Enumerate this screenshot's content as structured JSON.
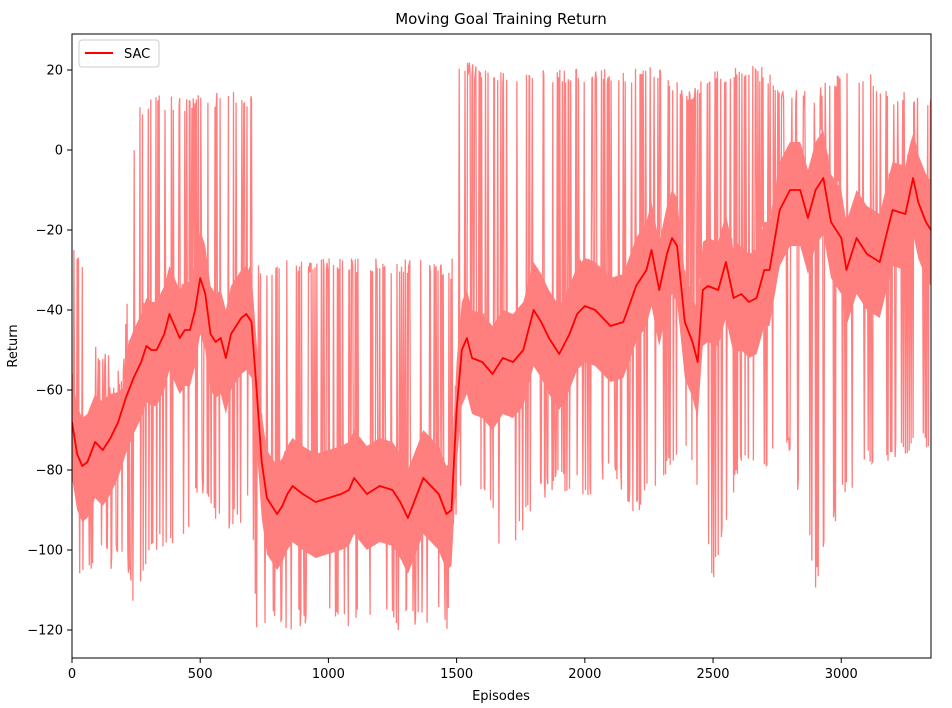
{
  "chart_data": {
    "type": "line",
    "title": "Moving Goal Training Return",
    "xlabel": "Episodes",
    "ylabel": "Return",
    "xlim": [
      0,
      3350
    ],
    "ylim": [
      -127,
      29
    ],
    "xticks": [
      0,
      500,
      1000,
      1500,
      2000,
      2500,
      3000
    ],
    "yticks": [
      -120,
      -100,
      -80,
      -60,
      -40,
      -20,
      0,
      20
    ],
    "grid": false,
    "legend": {
      "placement": "top-left",
      "entries": [
        "SAC"
      ]
    },
    "colors": {
      "smoothed": "#ff0000",
      "raw": "#ff7f7f"
    },
    "series": [
      {
        "name": "SAC",
        "role": "smoothed",
        "x": [
          0,
          20,
          40,
          60,
          90,
          120,
          150,
          180,
          210,
          240,
          270,
          290,
          310,
          330,
          360,
          380,
          400,
          420,
          440,
          460,
          480,
          500,
          520,
          540,
          560,
          580,
          600,
          620,
          640,
          660,
          680,
          700,
          720,
          740,
          760,
          780,
          800,
          820,
          840,
          860,
          900,
          950,
          1000,
          1050,
          1080,
          1100,
          1150,
          1200,
          1250,
          1280,
          1310,
          1340,
          1370,
          1400,
          1430,
          1460,
          1480,
          1500,
          1520,
          1540,
          1560,
          1600,
          1640,
          1680,
          1720,
          1760,
          1800,
          1830,
          1860,
          1900,
          1940,
          1970,
          2000,
          2040,
          2070,
          2100,
          2150,
          2200,
          2240,
          2260,
          2290,
          2320,
          2340,
          2360,
          2390,
          2420,
          2440,
          2460,
          2480,
          2520,
          2550,
          2580,
          2610,
          2640,
          2670,
          2700,
          2720,
          2760,
          2800,
          2840,
          2870,
          2900,
          2930,
          2960,
          3000,
          3020,
          3060,
          3100,
          3150,
          3200,
          3250,
          3280,
          3300,
          3330,
          3350
        ],
        "y": [
          -68,
          -76,
          -79,
          -78,
          -73,
          -75,
          -72,
          -68,
          -62,
          -57,
          -53,
          -49,
          -50,
          -50,
          -46,
          -41,
          -44,
          -47,
          -45,
          -45,
          -40,
          -32,
          -36,
          -46,
          -48,
          -47,
          -52,
          -46,
          -44,
          -42,
          -41,
          -43,
          -60,
          -78,
          -87,
          -89,
          -91,
          -89,
          -86,
          -84,
          -86,
          -88,
          -87,
          -86,
          -85,
          -82,
          -86,
          -84,
          -85,
          -88,
          -92,
          -87,
          -82,
          -84,
          -86,
          -91,
          -90,
          -65,
          -50,
          -47,
          -52,
          -53,
          -56,
          -52,
          -53,
          -50,
          -40,
          -43,
          -47,
          -51,
          -46,
          -41,
          -39,
          -40,
          -42,
          -44,
          -43,
          -34,
          -30,
          -25,
          -35,
          -26,
          -22,
          -24,
          -43,
          -48,
          -53,
          -35,
          -34,
          -35,
          -28,
          -37,
          -36,
          -38,
          -37,
          -30,
          -30,
          -15,
          -10,
          -10,
          -17,
          -10,
          -7,
          -18,
          -22,
          -30,
          -22,
          -26,
          -28,
          -15,
          -16,
          -7,
          -13,
          -18,
          -20
        ]
      }
    ],
    "raw_band": {
      "x": [
        0,
        50,
        100,
        150,
        200,
        250,
        300,
        350,
        400,
        450,
        500,
        550,
        600,
        650,
        700,
        720,
        760,
        800,
        900,
        1000,
        1100,
        1200,
        1300,
        1400,
        1480,
        1500,
        1550,
        1600,
        1700,
        1800,
        1900,
        2000,
        2100,
        2200,
        2300,
        2400,
        2500,
        2600,
        2700,
        2800,
        2900,
        3000,
        3100,
        3200,
        3300,
        3350
      ],
      "upper": [
        -20,
        -30,
        -50,
        -50,
        -55,
        12,
        13,
        14,
        14,
        13,
        14,
        14,
        15,
        15,
        14,
        -27,
        -30,
        -27,
        -27,
        -27,
        -27,
        -27,
        -27,
        -27,
        -30,
        22,
        22,
        20,
        20,
        20,
        20,
        21,
        20,
        21,
        21,
        15,
        20,
        21,
        21,
        15,
        15,
        21,
        20,
        15,
        15,
        14
      ],
      "lower": [
        -108,
        -108,
        -103,
        -105,
        -100,
        -118,
        -105,
        -100,
        -98,
        -97,
        -85,
        -92,
        -95,
        -96,
        -90,
        -120,
        -120,
        -120,
        -120,
        -120,
        -120,
        -120,
        -120,
        -120,
        -120,
        -90,
        -85,
        -88,
        -105,
        -90,
        -85,
        -88,
        -80,
        -92,
        -85,
        -75,
        -108,
        -82,
        -80,
        -75,
        -110,
        -90,
        -80,
        -78,
        -77,
        -76
      ]
    }
  }
}
